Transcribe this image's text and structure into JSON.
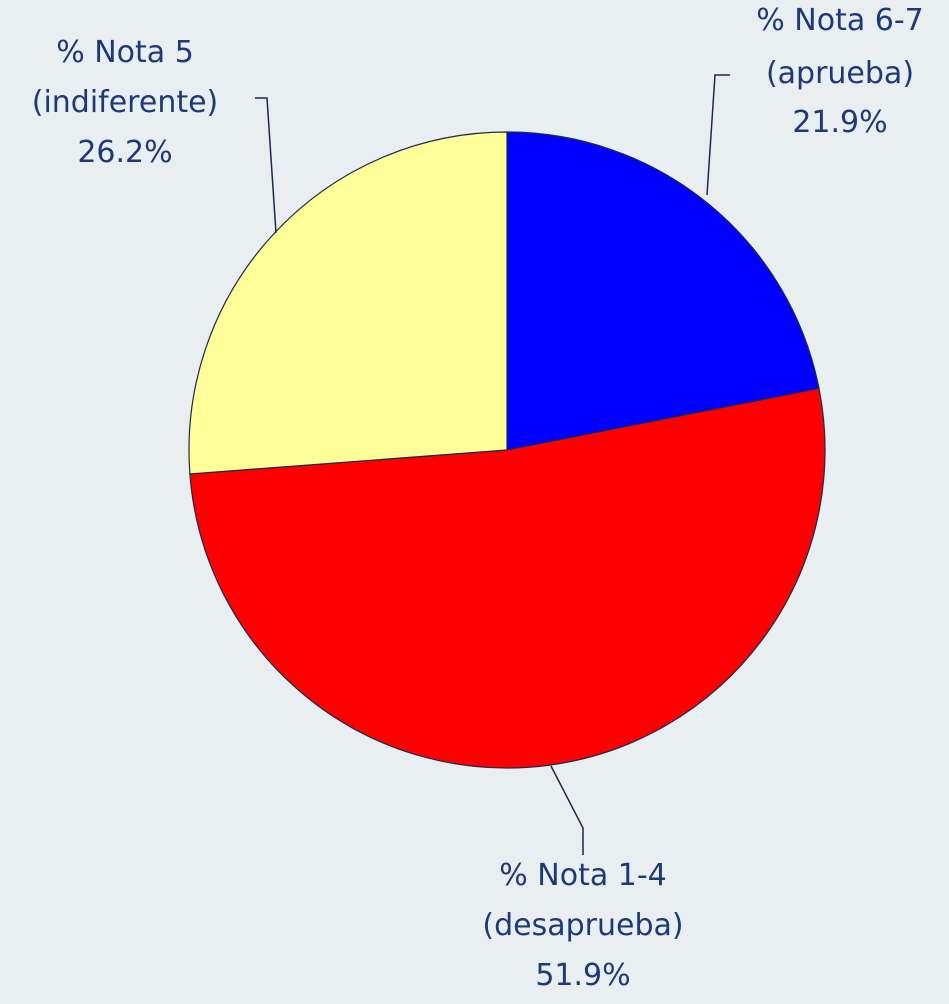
{
  "chart_data": {
    "type": "pie",
    "categories": [
      "% Nota 6-7\n(aprueba)",
      "% Nota 1-4\n(desaprueba)",
      "% Nota 5\n(indiferente)"
    ],
    "values": [
      21.9,
      51.9,
      26.2
    ],
    "value_labels": [
      "21.9%",
      "51.9%",
      "26.2%"
    ],
    "colors": [
      "#0000ff",
      "#ff0000",
      "#ffff99"
    ],
    "start": "top",
    "direction": "clockwise"
  }
}
